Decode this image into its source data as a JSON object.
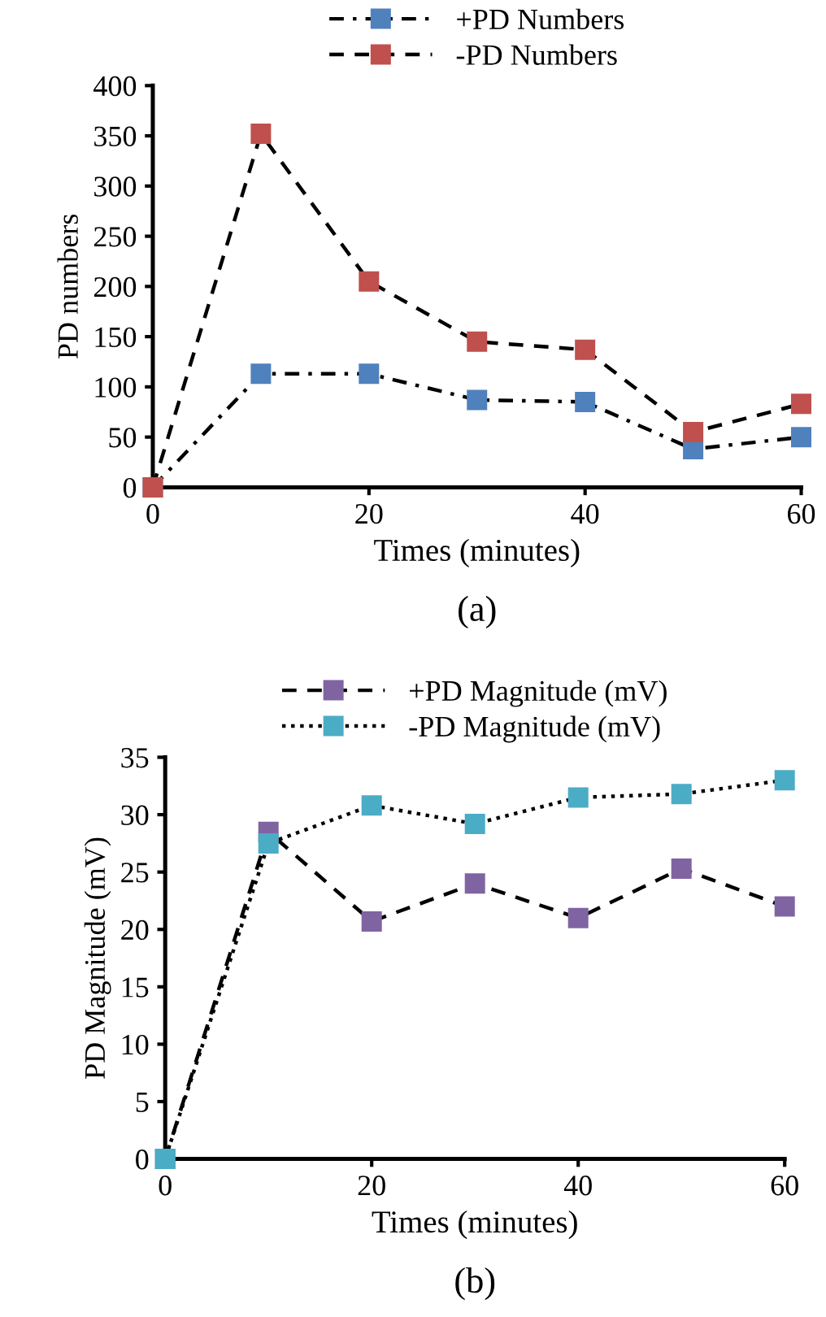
{
  "chart_data": [
    {
      "type": "line",
      "xlabel": "Times (minutes)",
      "ylabel": "PD numbers",
      "annotations": [
        "(a)"
      ],
      "x": [
        0,
        10,
        20,
        30,
        40,
        50,
        60
      ],
      "xlim": [
        0,
        60
      ],
      "xticks": [
        0,
        20,
        40,
        60
      ],
      "ylim": [
        0,
        400
      ],
      "yticks": [
        0,
        50,
        100,
        150,
        200,
        250,
        300,
        350,
        400
      ],
      "grid": false,
      "legend": "top",
      "marker": "square",
      "series": [
        {
          "name": "+PD Numbers",
          "color": "#4f81bd",
          "line_style": "dashdot",
          "values": [
            0,
            113,
            113,
            87,
            85,
            38,
            50
          ]
        },
        {
          "name": "-PD Numbers",
          "color": "#c0504d",
          "line_style": "dashed",
          "values": [
            0,
            352,
            205,
            145,
            137,
            55,
            83
          ]
        }
      ]
    },
    {
      "type": "line",
      "xlabel": "Times (minutes)",
      "ylabel": "PD Magnitude (mV)",
      "annotations": [
        "(b)"
      ],
      "x": [
        0,
        10,
        20,
        30,
        40,
        50,
        60
      ],
      "xlim": [
        0,
        60
      ],
      "xticks": [
        0,
        20,
        40,
        60
      ],
      "ylim": [
        0,
        35
      ],
      "yticks": [
        0,
        5,
        10,
        15,
        20,
        25,
        30,
        35
      ],
      "grid": false,
      "legend": "top",
      "marker": "square",
      "series": [
        {
          "name": "+PD Magnitude (mV)",
          "color": "#8064a2",
          "line_style": "dashed",
          "values": [
            0,
            28.5,
            20.7,
            24,
            21,
            25.3,
            22
          ]
        },
        {
          "name": "-PD Magnitude (mV)",
          "color": "#4bacc6",
          "line_style": "dotted",
          "values": [
            0,
            27.5,
            30.8,
            29.2,
            31.5,
            31.8,
            33
          ]
        }
      ]
    }
  ]
}
